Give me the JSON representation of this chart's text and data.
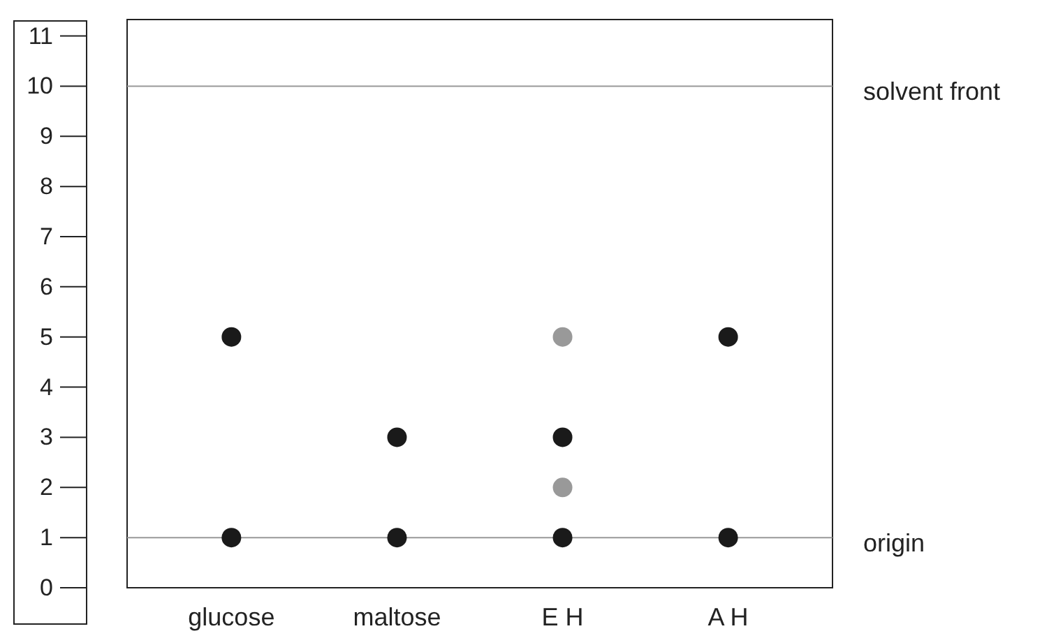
{
  "chart_data": {
    "type": "scatter",
    "categories": [
      "glucose",
      "maltose",
      "E H",
      "A H"
    ],
    "ylim": [
      0,
      11.3
    ],
    "yticks": [
      0,
      1,
      2,
      3,
      4,
      5,
      6,
      7,
      8,
      9,
      10,
      11
    ],
    "grid": false,
    "series": [
      {
        "color": "#1a1a1a",
        "x": [
          "glucose",
          "glucose",
          "maltose",
          "maltose",
          "E H",
          "E H",
          "A H",
          "A H"
        ],
        "values": [
          1,
          5,
          1,
          3,
          1,
          3,
          1,
          5
        ]
      },
      {
        "color": "#999999",
        "x": [
          "E H",
          "E H"
        ],
        "values": [
          2,
          5
        ]
      }
    ],
    "ref_lines": [
      {
        "axis": "y",
        "value": 10,
        "label": "solvent front",
        "color": "#999999"
      },
      {
        "axis": "y",
        "value": 1,
        "label": "origin",
        "color": "#999999"
      }
    ]
  }
}
